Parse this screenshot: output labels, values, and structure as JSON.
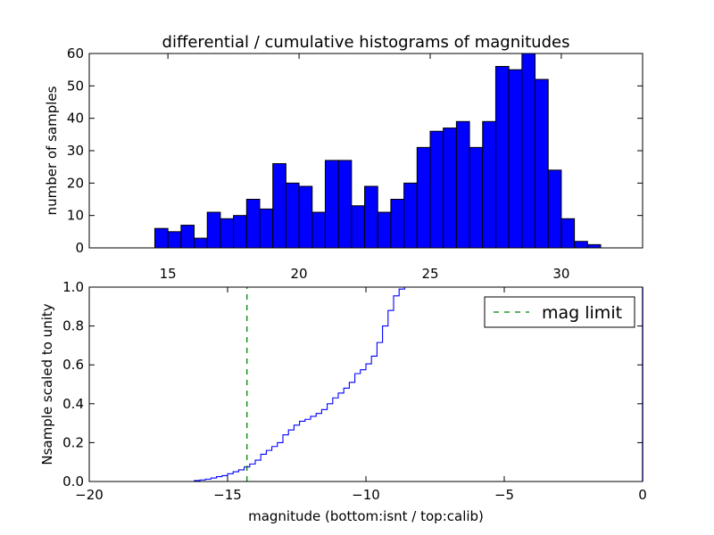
{
  "figure": {
    "title": "differential / cumulative histograms of magnitudes",
    "xlabel": "magnitude (bottom:isnt / top:calib)"
  },
  "chart_data": [
    {
      "type": "bar",
      "title": "differential / cumulative histograms of magnitudes",
      "xlabel": "",
      "ylabel": "number of samples",
      "xlim": [
        12.0,
        33.1
      ],
      "ylim": [
        0,
        60
      ],
      "x_ticks": [
        15,
        20,
        25,
        30
      ],
      "y_ticks": [
        0,
        10,
        20,
        30,
        40,
        50,
        60
      ],
      "bin_width": 0.5,
      "bin_start": 14.5,
      "values": [
        6,
        5,
        7,
        3,
        11,
        9,
        10,
        15,
        12,
        26,
        20,
        19,
        11,
        27,
        27,
        13,
        19,
        11,
        15,
        20,
        31,
        36,
        37,
        39,
        31,
        39,
        56,
        55,
        60,
        52,
        24,
        9,
        2,
        1
      ],
      "bar_color": "#0000ff",
      "edge_color": "#000000",
      "grid": false
    },
    {
      "type": "line",
      "drawstyle": "steps",
      "xlabel": "magnitude (bottom:isnt / top:calib)",
      "ylabel": "Nsample scaled to unity",
      "xlim": [
        -20,
        0
      ],
      "ylim": [
        0.0,
        1.0
      ],
      "x_ticks": [
        -20,
        -15,
        -10,
        -5,
        0
      ],
      "y_ticks": [
        0.0,
        0.2,
        0.4,
        0.6,
        0.8,
        1.0
      ],
      "grid": false,
      "legend": {
        "placement": "top-right",
        "entries": [
          {
            "label": "mag limit",
            "color": "#008000",
            "style": "dashed"
          }
        ]
      },
      "series": [
        {
          "color": "#0000ff",
          "x": [
            -20.0,
            -16.2,
            -16.0,
            -15.8,
            -15.6,
            -15.4,
            -15.2,
            -15.0,
            -14.8,
            -14.6,
            -14.4,
            -14.2,
            -14.0,
            -13.8,
            -13.6,
            -13.4,
            -13.2,
            -13.0,
            -12.8,
            -12.6,
            -12.4,
            -12.2,
            -12.0,
            -11.8,
            -11.6,
            -11.4,
            -11.2,
            -11.0,
            -10.8,
            -10.6,
            -10.4,
            -10.2,
            -10.0,
            -9.8,
            -9.6,
            -9.4,
            -9.2,
            -9.0,
            -8.8,
            -8.6,
            -8.4,
            0.0
          ],
          "y": [
            0.0,
            0.005,
            0.008,
            0.012,
            0.018,
            0.025,
            0.03,
            0.04,
            0.05,
            0.06,
            0.075,
            0.09,
            0.11,
            0.14,
            0.16,
            0.18,
            0.2,
            0.24,
            0.265,
            0.29,
            0.31,
            0.32,
            0.335,
            0.35,
            0.37,
            0.4,
            0.43,
            0.455,
            0.48,
            0.51,
            0.555,
            0.575,
            0.605,
            0.645,
            0.715,
            0.8,
            0.88,
            0.955,
            0.99,
            1.0,
            1.0,
            1.0
          ]
        },
        {
          "name": "mag limit",
          "color": "#008000",
          "style": "dashed",
          "x": [
            -14.3,
            -14.3
          ],
          "y": [
            0.0,
            1.0
          ]
        }
      ]
    }
  ]
}
